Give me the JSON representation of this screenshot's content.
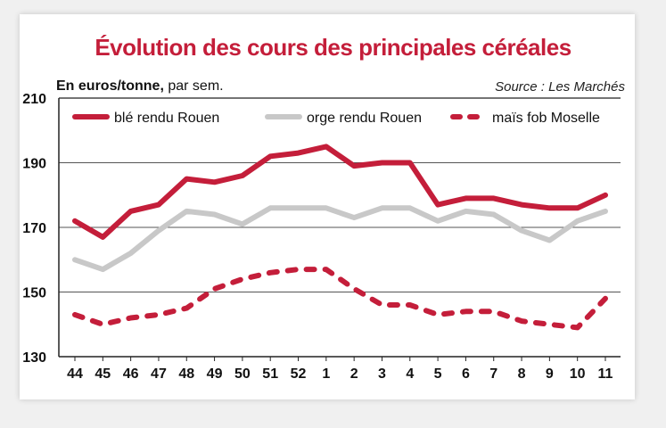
{
  "header": {
    "title": "Évolution des cours des principales céréales",
    "unit_bold": "En euros/tonne,",
    "unit_rest": " par sem.",
    "source": "Source : Les Marchés"
  },
  "chart_data": {
    "type": "line",
    "title": "Évolution des cours des principales céréales",
    "ylabel": "En euros/tonne, par sem.",
    "xlabel": "",
    "ylim": [
      130,
      210
    ],
    "yticks": [
      130,
      150,
      170,
      190,
      210
    ],
    "categories": [
      "44",
      "45",
      "46",
      "47",
      "48",
      "49",
      "50",
      "51",
      "52",
      "1",
      "2",
      "3",
      "4",
      "5",
      "6",
      "7",
      "8",
      "9",
      "10",
      "11"
    ],
    "grid": true,
    "legend_position": "top",
    "series": [
      {
        "name": "blé rendu Rouen",
        "color": "#c41e3a",
        "style": "solid",
        "values": [
          172,
          167,
          175,
          177,
          185,
          184,
          186,
          192,
          193,
          195,
          189,
          190,
          190,
          177,
          179,
          179,
          177,
          176,
          176,
          180
        ]
      },
      {
        "name": "orge rendu Rouen",
        "color": "#c8c8c8",
        "style": "solid",
        "values": [
          160,
          157,
          162,
          169,
          175,
          174,
          171,
          176,
          176,
          176,
          173,
          176,
          176,
          172,
          175,
          174,
          169,
          166,
          172,
          175
        ]
      },
      {
        "name": "maïs fob Moselle",
        "color": "#c41e3a",
        "style": "dashed",
        "values": [
          143,
          140,
          142,
          143,
          145,
          151,
          154,
          156,
          157,
          157,
          151,
          146,
          146,
          143,
          144,
          144,
          141,
          140,
          139,
          148
        ]
      }
    ]
  }
}
